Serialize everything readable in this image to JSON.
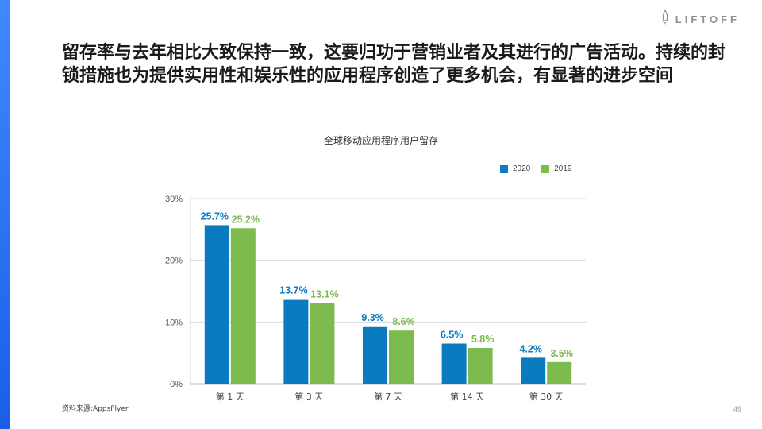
{
  "brand": {
    "name": "LIFTOFF",
    "icon": "rocket-icon"
  },
  "headline": "留存率与去年相比大致保持一致，这要归功于营销业者及其进行的广告活动。持续的封锁措施也为提供实用性和娱乐性的应用程序创造了更多机会，有显著的进步空间",
  "source": "资料来源:AppsFlyer",
  "page_number": "49",
  "colors": {
    "series_2020": "#0b7bbf",
    "series_2019": "#7dbb4e",
    "accent": "#2a72f5",
    "grid": "#d9d9d9"
  },
  "chart_data": {
    "type": "bar",
    "title": "全球移动应用程序用户留存",
    "categories": [
      "第 1 天",
      "第 3 天",
      "第 7 天",
      "第 14 天",
      "第 30 天"
    ],
    "series": [
      {
        "name": "2020",
        "values": [
          25.7,
          13.7,
          9.3,
          6.5,
          4.2
        ],
        "labels": [
          "25.7%",
          "13.7%",
          "9.3%",
          "6.5%",
          "4.2%"
        ]
      },
      {
        "name": "2019",
        "values": [
          25.2,
          13.1,
          8.6,
          5.8,
          3.5
        ],
        "labels": [
          "25.2%",
          "13.1%",
          "8.6%",
          "5.8%",
          "3.5%"
        ]
      }
    ],
    "ylim": [
      0,
      30
    ],
    "yticks": [
      0,
      10,
      20,
      30
    ],
    "ytick_labels": [
      "0%",
      "10%",
      "20%",
      "30%"
    ],
    "grid": true,
    "legend_position": "top-right",
    "xlabel": "",
    "ylabel": ""
  }
}
